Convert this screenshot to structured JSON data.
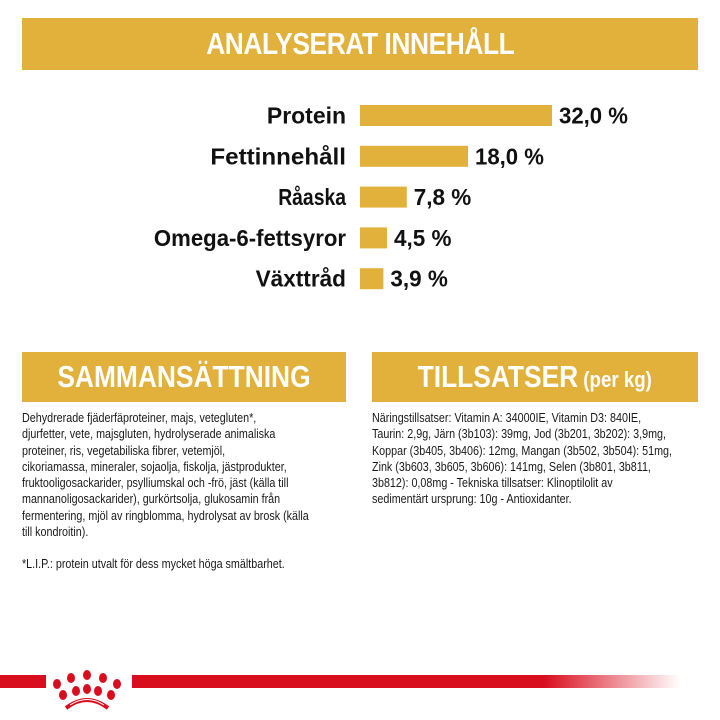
{
  "header": {
    "title": "ANALYSERAT INNEHÅLL"
  },
  "chart_data": {
    "type": "bar",
    "orientation": "horizontal",
    "title": "ANALYSERAT INNEHÅLL",
    "categories": [
      "Protein",
      "Fettinnehåll",
      "Råaska",
      "Omega-6-fettsyror",
      "Växttråd"
    ],
    "values": [
      32.0,
      18.0,
      7.8,
      4.5,
      3.9
    ],
    "data_labels": [
      "32,0 %",
      "18,0 %",
      "7,8 %",
      "4,5 %",
      "3,9 %"
    ],
    "bar_color": "#E2B13C",
    "grid": false
  },
  "composition": {
    "title": "SAMMANSÄTTNING",
    "lines": [
      "Dehydrerade fjäderfäproteiner, majs, vetegluten*,",
      "djurfetter, vete, majsgluten, hydrolyserade animaliska",
      "proteiner, ris, vegetabiliska fibrer, vetemjöl,",
      "cikoriamassa, mineraler, sojaolja, fiskolja, jästprodukter,",
      "fruktooligosackarider, psylliumskal och -frö, jäst (källa till",
      "mannanoligosackarider), gurkörtsolja, glukosamin från",
      "fermentering, mjöl av ringblomma, hydrolysat av brosk (källa",
      "till kondroitin)."
    ],
    "footnote": "*L.I.P.: protein utvalt för dess mycket höga smältbarhet."
  },
  "additives": {
    "title": "TILLSATSER",
    "title_suffix": "(per kg)",
    "lines": [
      "Näringstillsatser: Vitamin A: 34000IE, Vitamin D3: 840IE,",
      "Taurin: 2,9g, Järn (3b103): 39mg, Jod (3b201, 3b202): 3,9mg,",
      "Koppar (3b405, 3b406): 12mg, Mangan (3b502, 3b504): 51mg,",
      "Zink (3b603, 3b605, 3b606): 141mg, Selen (3b801, 3b811,",
      "3b812): 0,08mg - Tekniska tillsatser: Klinoptilolit av",
      "sedimentärt ursprung: 10g - Antioxidanter."
    ]
  },
  "brand": {
    "logo": "crown-logo",
    "accent": "#D80E1E",
    "gold": "#E2B13C"
  }
}
